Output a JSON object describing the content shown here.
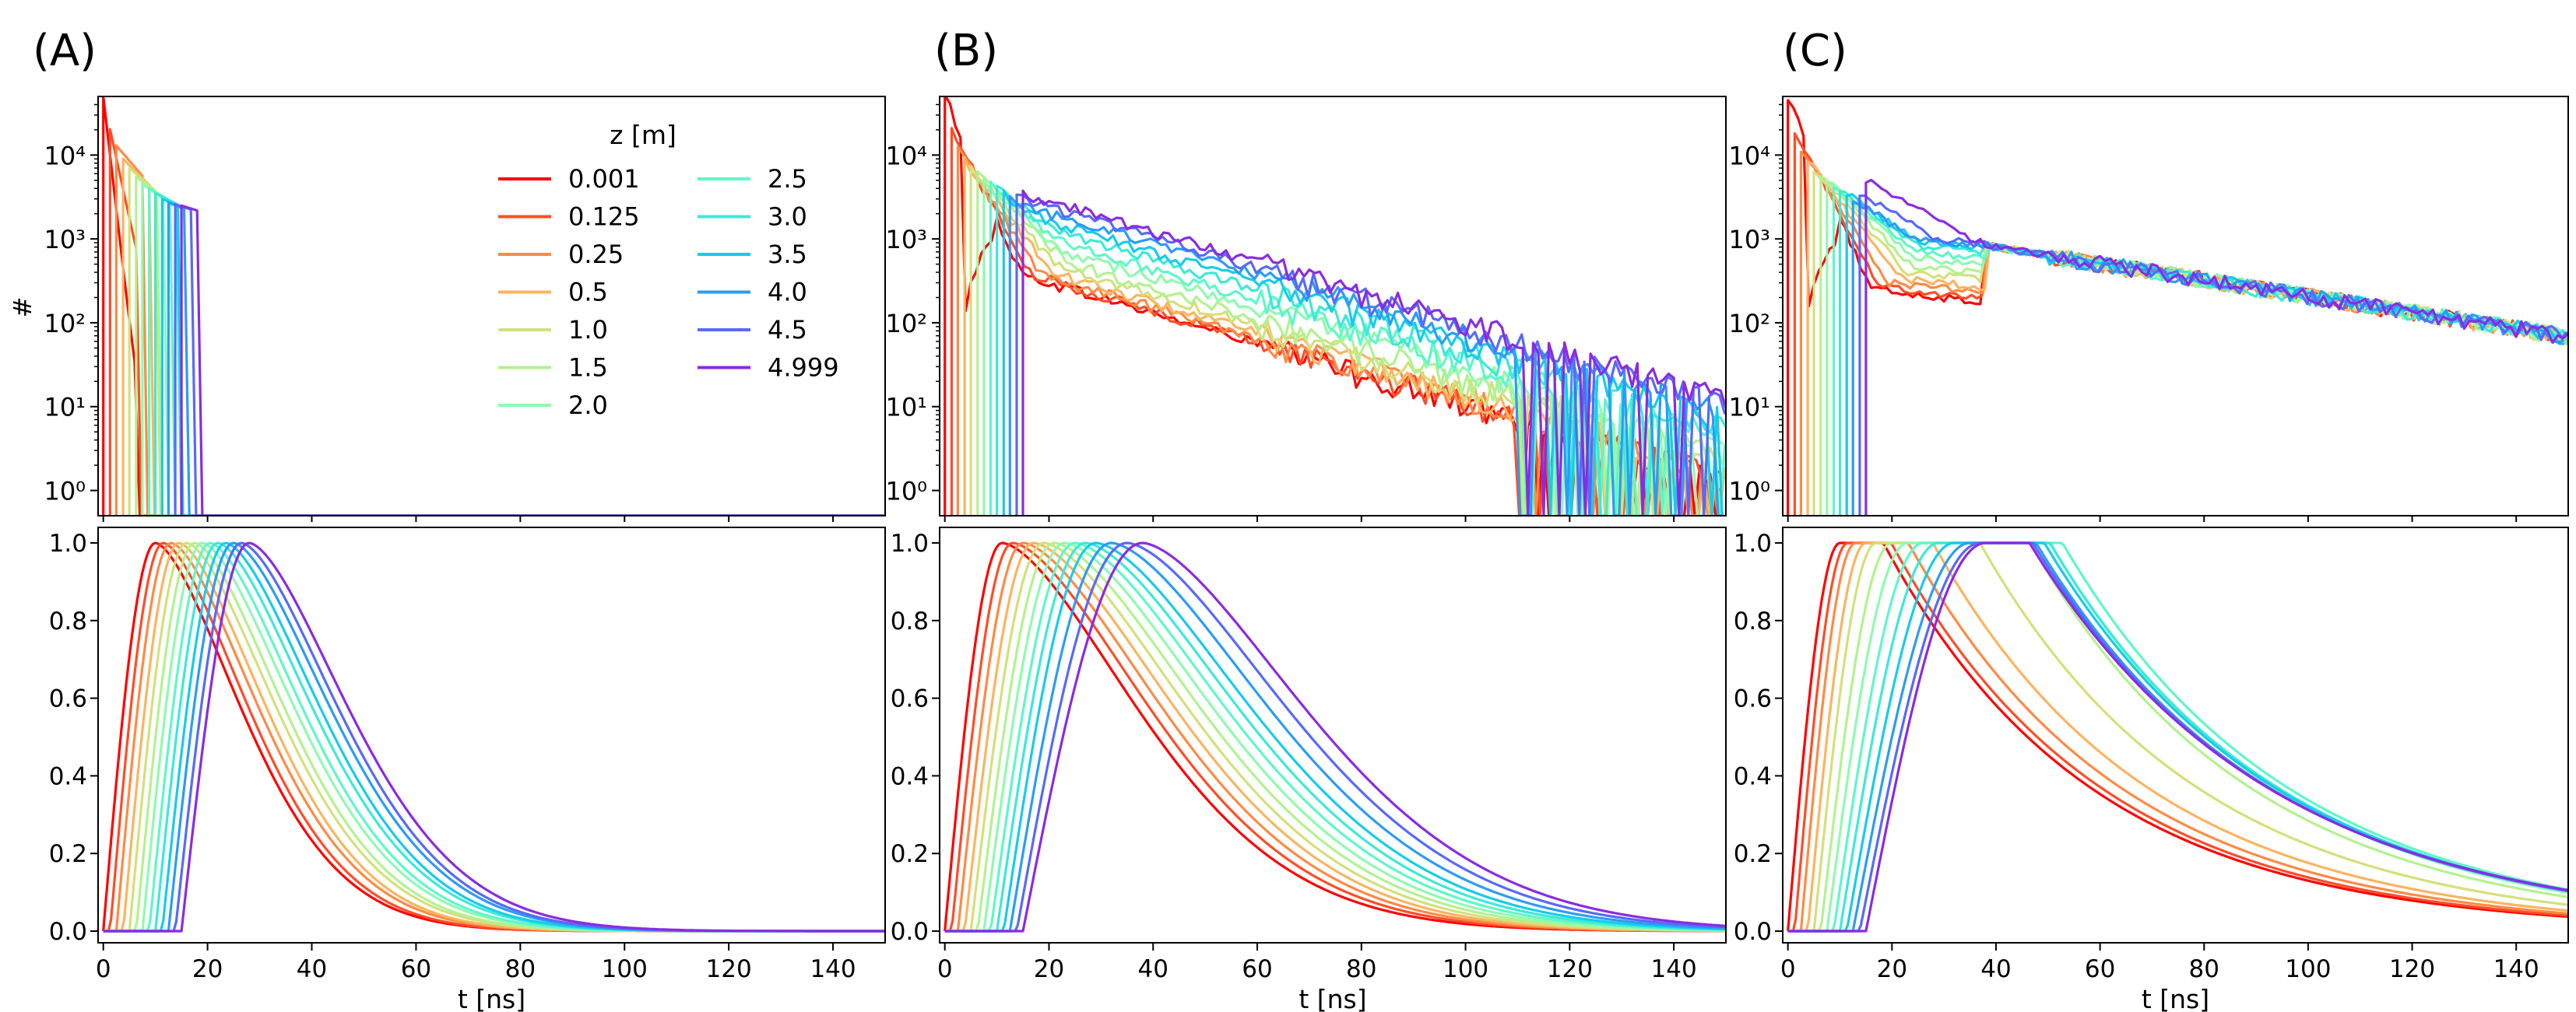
{
  "figure": {
    "panel_labels": [
      "(A)",
      "(B)",
      "(C)"
    ],
    "legend": {
      "title": "z [m]",
      "entries": [
        "0.001",
        "0.125",
        "0.25",
        "0.5",
        "1.0",
        "1.5",
        "2.0",
        "2.5",
        "3.0",
        "3.5",
        "4.0",
        "4.5",
        "4.999"
      ],
      "placement": "top-right of panel A top plot, two columns"
    },
    "series_colors": [
      "#ff0000",
      "#ff4d26",
      "#fe8a44",
      "#fbb45f",
      "#d4e07a",
      "#b2f28f",
      "#8ffab0",
      "#5ef7c9",
      "#3ce9d8",
      "#16ccea",
      "#2b9cf6",
      "#5869fb",
      "#8a2be2"
    ]
  },
  "chart_data": [
    {
      "type": "line",
      "panel": "(A)",
      "row": "top",
      "ylabel": "#",
      "xlabel": "",
      "yscale": "log",
      "ylim": [
        0.5,
        50000
      ],
      "xlim": [
        -1,
        150
      ],
      "ytick_labels": [
        "10⁰",
        "10¹",
        "10²",
        "10³",
        "10⁴"
      ],
      "series_names": [
        "0.001",
        "0.125",
        "0.25",
        "0.5",
        "1.0",
        "1.5",
        "2.0",
        "2.5",
        "3.0",
        "3.5",
        "4.0",
        "4.5",
        "4.999"
      ],
      "onset_t": [
        0,
        1.3,
        2.5,
        3.8,
        5.0,
        6.3,
        7.5,
        8.8,
        10.0,
        11.3,
        12.5,
        13.8,
        15.0
      ],
      "peak_values": [
        50000,
        20000,
        13000,
        9000,
        7000,
        5500,
        4500,
        4000,
        3500,
        3000,
        2700,
        2600,
        2500
      ],
      "cutoff_t": [
        6,
        7,
        8,
        9,
        10,
        11,
        12,
        13,
        14,
        15,
        16,
        17,
        18
      ],
      "decay_tau_ns": [
        4,
        5,
        6,
        7,
        8,
        9,
        10,
        12,
        14,
        16,
        18,
        20,
        22
      ],
      "grid": false
    },
    {
      "type": "line",
      "panel": "(B)",
      "row": "top",
      "yscale": "log",
      "ylim": [
        0.5,
        50000
      ],
      "xlim": [
        -1,
        150
      ],
      "ytick_labels": [
        "10⁰",
        "10¹",
        "10²",
        "10³",
        "10⁴"
      ],
      "series_names": [
        "0.001",
        "0.125",
        "0.25",
        "0.5",
        "1.0",
        "1.5",
        "2.0",
        "2.5",
        "3.0",
        "3.5",
        "4.0",
        "4.5",
        "4.999"
      ],
      "onset_t": [
        0,
        1.3,
        2.5,
        3.8,
        5.0,
        6.3,
        7.5,
        8.8,
        10.0,
        11.3,
        12.5,
        13.8,
        15.0
      ],
      "peak_values": [
        50000,
        20000,
        12000,
        9000,
        7000,
        6000,
        5000,
        4500,
        4000,
        3500,
        3000,
        2800,
        2600
      ],
      "tail_value_at_20ns": [
        300,
        320,
        350,
        400,
        500,
        600,
        800,
        1000,
        1300,
        1600,
        2000,
        2400,
        2800
      ],
      "tail_tau_ns": 24,
      "grid": false
    },
    {
      "type": "line",
      "panel": "(C)",
      "row": "top",
      "yscale": "log",
      "ylim": [
        0.5,
        50000
      ],
      "xlim": [
        -1,
        150
      ],
      "ytick_labels": [
        "10⁰",
        "10¹",
        "10²",
        "10³",
        "10⁴"
      ],
      "series_names": [
        "0.001",
        "0.125",
        "0.25",
        "0.5",
        "1.0",
        "1.5",
        "2.0",
        "2.5",
        "3.0",
        "3.5",
        "4.0",
        "4.5",
        "4.999"
      ],
      "onset_t": [
        0,
        1.3,
        2.5,
        3.8,
        5.0,
        6.3,
        7.5,
        8.8,
        10.0,
        11.3,
        12.5,
        13.8,
        15.0
      ],
      "peak_values": [
        50000,
        20000,
        12000,
        9000,
        7000,
        6000,
        5000,
        4500,
        4000,
        3500,
        3000,
        3500,
        5000
      ],
      "dip_value_at_36ns": [
        180,
        200,
        230,
        270,
        330,
        400,
        500,
        600,
        700,
        800,
        850,
        900,
        950
      ],
      "value_at_40ns": 800,
      "tail_tau_ns": 45,
      "grid": false
    },
    {
      "type": "line",
      "panel": "(A)",
      "row": "bottom",
      "xlabel": "t [ns]",
      "ylabel": "",
      "xlim": [
        -1,
        150
      ],
      "ylim": [
        -0.03,
        1.04
      ],
      "xticks": [
        0,
        20,
        40,
        60,
        80,
        100,
        120,
        140
      ],
      "yticks": [
        0.0,
        0.2,
        0.4,
        0.6,
        0.8,
        1.0
      ],
      "series_names": [
        "0.001",
        "0.125",
        "0.25",
        "0.5",
        "1.0",
        "1.5",
        "2.0",
        "2.5",
        "3.0",
        "3.5",
        "4.0",
        "4.5",
        "4.999"
      ],
      "onset_t": [
        0,
        1.3,
        2.5,
        3.8,
        5.0,
        6.3,
        7.5,
        8.8,
        10.0,
        11.3,
        12.5,
        13.8,
        15.0
      ],
      "peak_t": [
        10,
        11.5,
        13,
        14.5,
        16,
        17.5,
        19,
        20.5,
        22,
        23.5,
        25,
        26.5,
        28
      ],
      "peak_value": 1.0,
      "decay_tau_ns": [
        19,
        19,
        19.5,
        19.5,
        20,
        20,
        20.5,
        20.5,
        21,
        21,
        21.5,
        21.5,
        22
      ],
      "grid": false
    },
    {
      "type": "line",
      "panel": "(B)",
      "row": "bottom",
      "xlabel": "t [ns]",
      "xlim": [
        -1,
        150
      ],
      "ylim": [
        -0.03,
        1.04
      ],
      "xticks": [
        0,
        20,
        40,
        60,
        80,
        100,
        120,
        140
      ],
      "yticks": [
        0.0,
        0.2,
        0.4,
        0.6,
        0.8,
        1.0
      ],
      "series_names": [
        "0.001",
        "0.125",
        "0.25",
        "0.5",
        "1.0",
        "1.5",
        "2.0",
        "2.5",
        "3.0",
        "3.5",
        "4.0",
        "4.5",
        "4.999"
      ],
      "onset_t": [
        0,
        1.3,
        2.5,
        3.8,
        5.0,
        6.3,
        7.5,
        8.8,
        10.0,
        11.3,
        12.5,
        13.8,
        15.0
      ],
      "peak_t": [
        11,
        13,
        15,
        17,
        19,
        21,
        23,
        25,
        27,
        29,
        32,
        35,
        38
      ],
      "peak_value": 1.0,
      "decay_tau_ns": [
        30,
        30.5,
        31,
        31.5,
        32,
        32.5,
        33,
        33.5,
        34,
        34.5,
        35,
        35.5,
        36
      ],
      "grid": false
    },
    {
      "type": "line",
      "panel": "(C)",
      "row": "bottom",
      "xlabel": "t [ns]",
      "xlim": [
        -1,
        150
      ],
      "ylim": [
        -0.03,
        1.04
      ],
      "xticks": [
        0,
        20,
        40,
        60,
        80,
        100,
        120,
        140
      ],
      "yticks": [
        0.0,
        0.2,
        0.4,
        0.6,
        0.8,
        1.0
      ],
      "series_names": [
        "0.001",
        "0.125",
        "0.25",
        "0.5",
        "1.0",
        "1.5",
        "2.0",
        "2.5",
        "3.0",
        "3.5",
        "4.0",
        "4.5",
        "4.999"
      ],
      "onset_t": [
        0,
        1.3,
        2.5,
        3.8,
        5.0,
        6.3,
        7.5,
        8.8,
        10.0,
        11.3,
        12.5,
        13.8,
        15.0
      ],
      "first_peak_t": [
        10,
        11.5,
        13,
        15,
        17,
        20,
        23,
        26,
        29,
        32,
        35,
        37,
        38
      ],
      "shoulder_value_at_55ns": [
        0.4,
        0.42,
        0.46,
        0.52,
        0.65,
        0.82,
        0.9,
        0.95,
        0.9,
        0.88,
        0.85,
        0.84,
        0.83
      ],
      "second_peak_t": 38,
      "peak_value": 1.0,
      "tail_tau_ns": [
        40,
        40.5,
        41,
        41.5,
        42,
        42.5,
        43,
        43.5,
        44,
        44.5,
        45,
        45.5,
        46
      ],
      "grid": false
    }
  ]
}
